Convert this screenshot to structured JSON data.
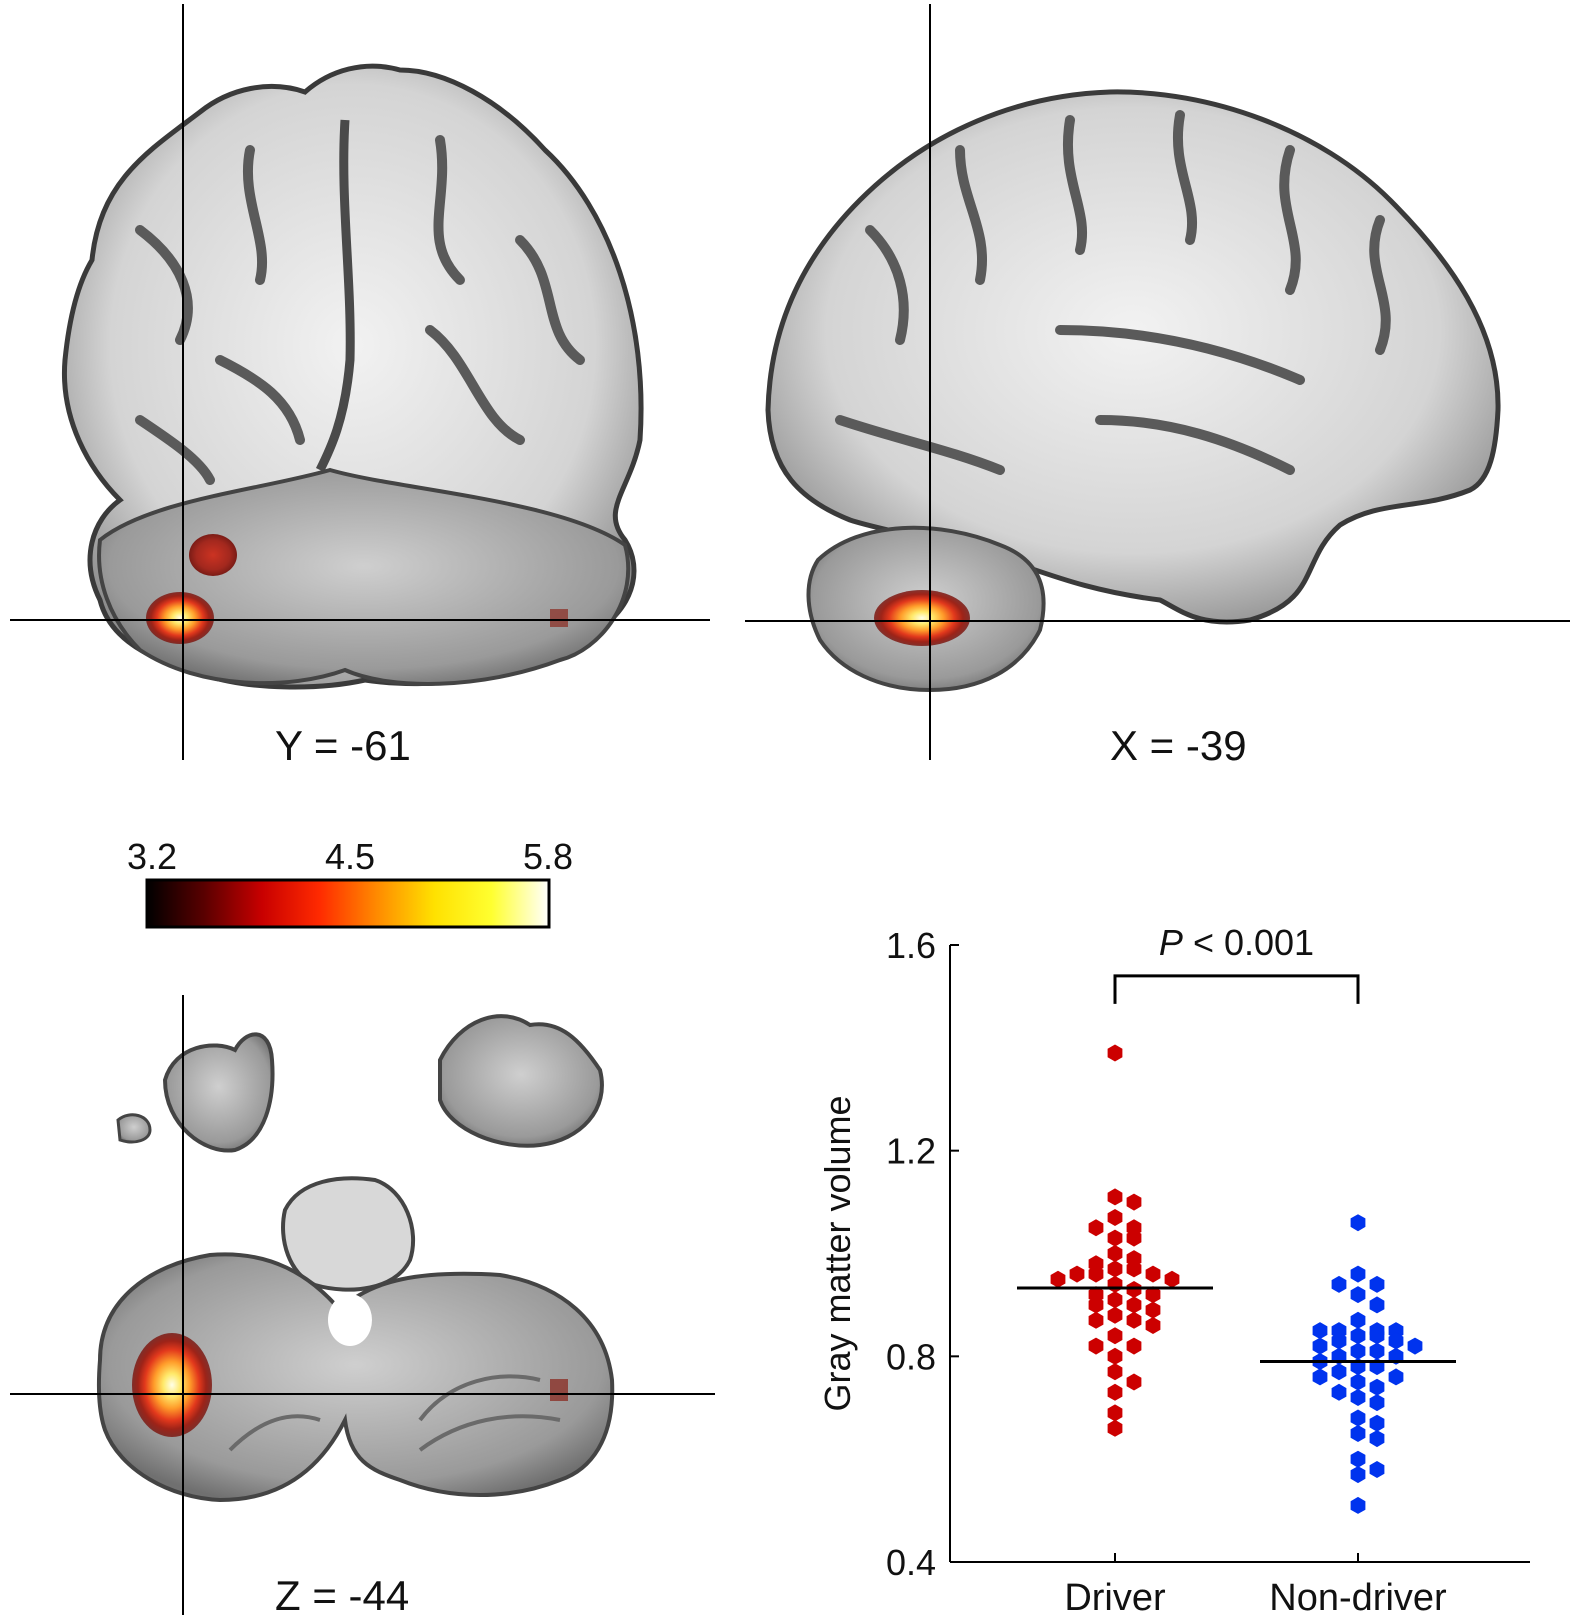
{
  "slices": {
    "coronal_label": "Y = -61",
    "sagittal_label": "X = -39",
    "axial_label": "Z = -44"
  },
  "colorbar": {
    "min_label": "3.2",
    "mid_label": "4.5",
    "max_label": "5.8",
    "min": 3.2,
    "mid": 4.5,
    "max": 5.8,
    "colormap": [
      "#000000",
      "#5a0000",
      "#c80000",
      "#ff2a00",
      "#ff8a00",
      "#ffe100",
      "#ffff30",
      "#ffffff"
    ]
  },
  "chart_data": {
    "type": "scatter",
    "title": "",
    "xlabel": "",
    "ylabel": "Gray matter volume",
    "categories": [
      "Driver",
      "Non-driver"
    ],
    "ylim": [
      0.4,
      1.6
    ],
    "yticks": [
      0.4,
      0.8,
      1.2,
      1.6
    ],
    "ytick_labels": [
      "0.4",
      "0.8",
      "1.2",
      "1.6"
    ],
    "annotation": {
      "italic": "P",
      "text": " < 0.001"
    },
    "series": [
      {
        "category": "Driver",
        "color": "#cc0000",
        "mean": 0.933,
        "values": [
          1.39,
          1.11,
          1.1,
          1.07,
          1.05,
          1.05,
          1.03,
          1.03,
          1.0,
          0.99,
          0.98,
          0.97,
          0.97,
          0.96,
          0.96,
          0.96,
          0.95,
          0.95,
          0.94,
          0.93,
          0.92,
          0.92,
          0.91,
          0.9,
          0.9,
          0.89,
          0.88,
          0.87,
          0.87,
          0.86,
          0.84,
          0.82,
          0.82,
          0.8,
          0.77,
          0.75,
          0.73,
          0.69,
          0.66
        ]
      },
      {
        "category": "Non-driver",
        "color": "#0033ee",
        "mean": 0.79,
        "values": [
          1.06,
          0.96,
          0.94,
          0.94,
          0.92,
          0.9,
          0.87,
          0.85,
          0.85,
          0.85,
          0.85,
          0.84,
          0.84,
          0.83,
          0.83,
          0.82,
          0.82,
          0.81,
          0.81,
          0.8,
          0.8,
          0.79,
          0.78,
          0.78,
          0.77,
          0.76,
          0.76,
          0.75,
          0.74,
          0.73,
          0.72,
          0.71,
          0.68,
          0.67,
          0.65,
          0.64,
          0.6,
          0.58,
          0.57,
          0.51
        ]
      }
    ]
  }
}
